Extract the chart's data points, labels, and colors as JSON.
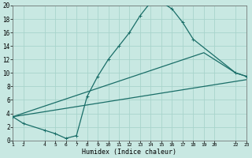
{
  "xlabel": "Humidex (Indice chaleur)",
  "background_color": "#c8e8e2",
  "grid_color": "#a8d4cc",
  "line_color": "#1a6e68",
  "xlim": [
    1,
    23
  ],
  "ylim": [
    0,
    20
  ],
  "xticks": [
    1,
    2,
    4,
    5,
    6,
    7,
    8,
    9,
    10,
    11,
    12,
    13,
    14,
    15,
    16,
    17,
    18,
    19,
    20,
    22,
    23
  ],
  "yticks": [
    0,
    2,
    4,
    6,
    8,
    10,
    12,
    14,
    16,
    18,
    20
  ],
  "line1_x": [
    1,
    2,
    4,
    5,
    6,
    7,
    8,
    9,
    10,
    11,
    12,
    13,
    14,
    15,
    16,
    17,
    18,
    22,
    23
  ],
  "line1_y": [
    3.5,
    2.5,
    1.5,
    1.0,
    0.3,
    0.7,
    6.5,
    9.5,
    12.0,
    14.0,
    16.0,
    18.5,
    20.5,
    20.5,
    19.5,
    17.5,
    15.0,
    10.0,
    9.5
  ],
  "line2_x": [
    1,
    23
  ],
  "line2_y": [
    3.5,
    9.0
  ],
  "line3_x": [
    1,
    19,
    22,
    23
  ],
  "line3_y": [
    3.5,
    13.0,
    10.0,
    9.5
  ]
}
